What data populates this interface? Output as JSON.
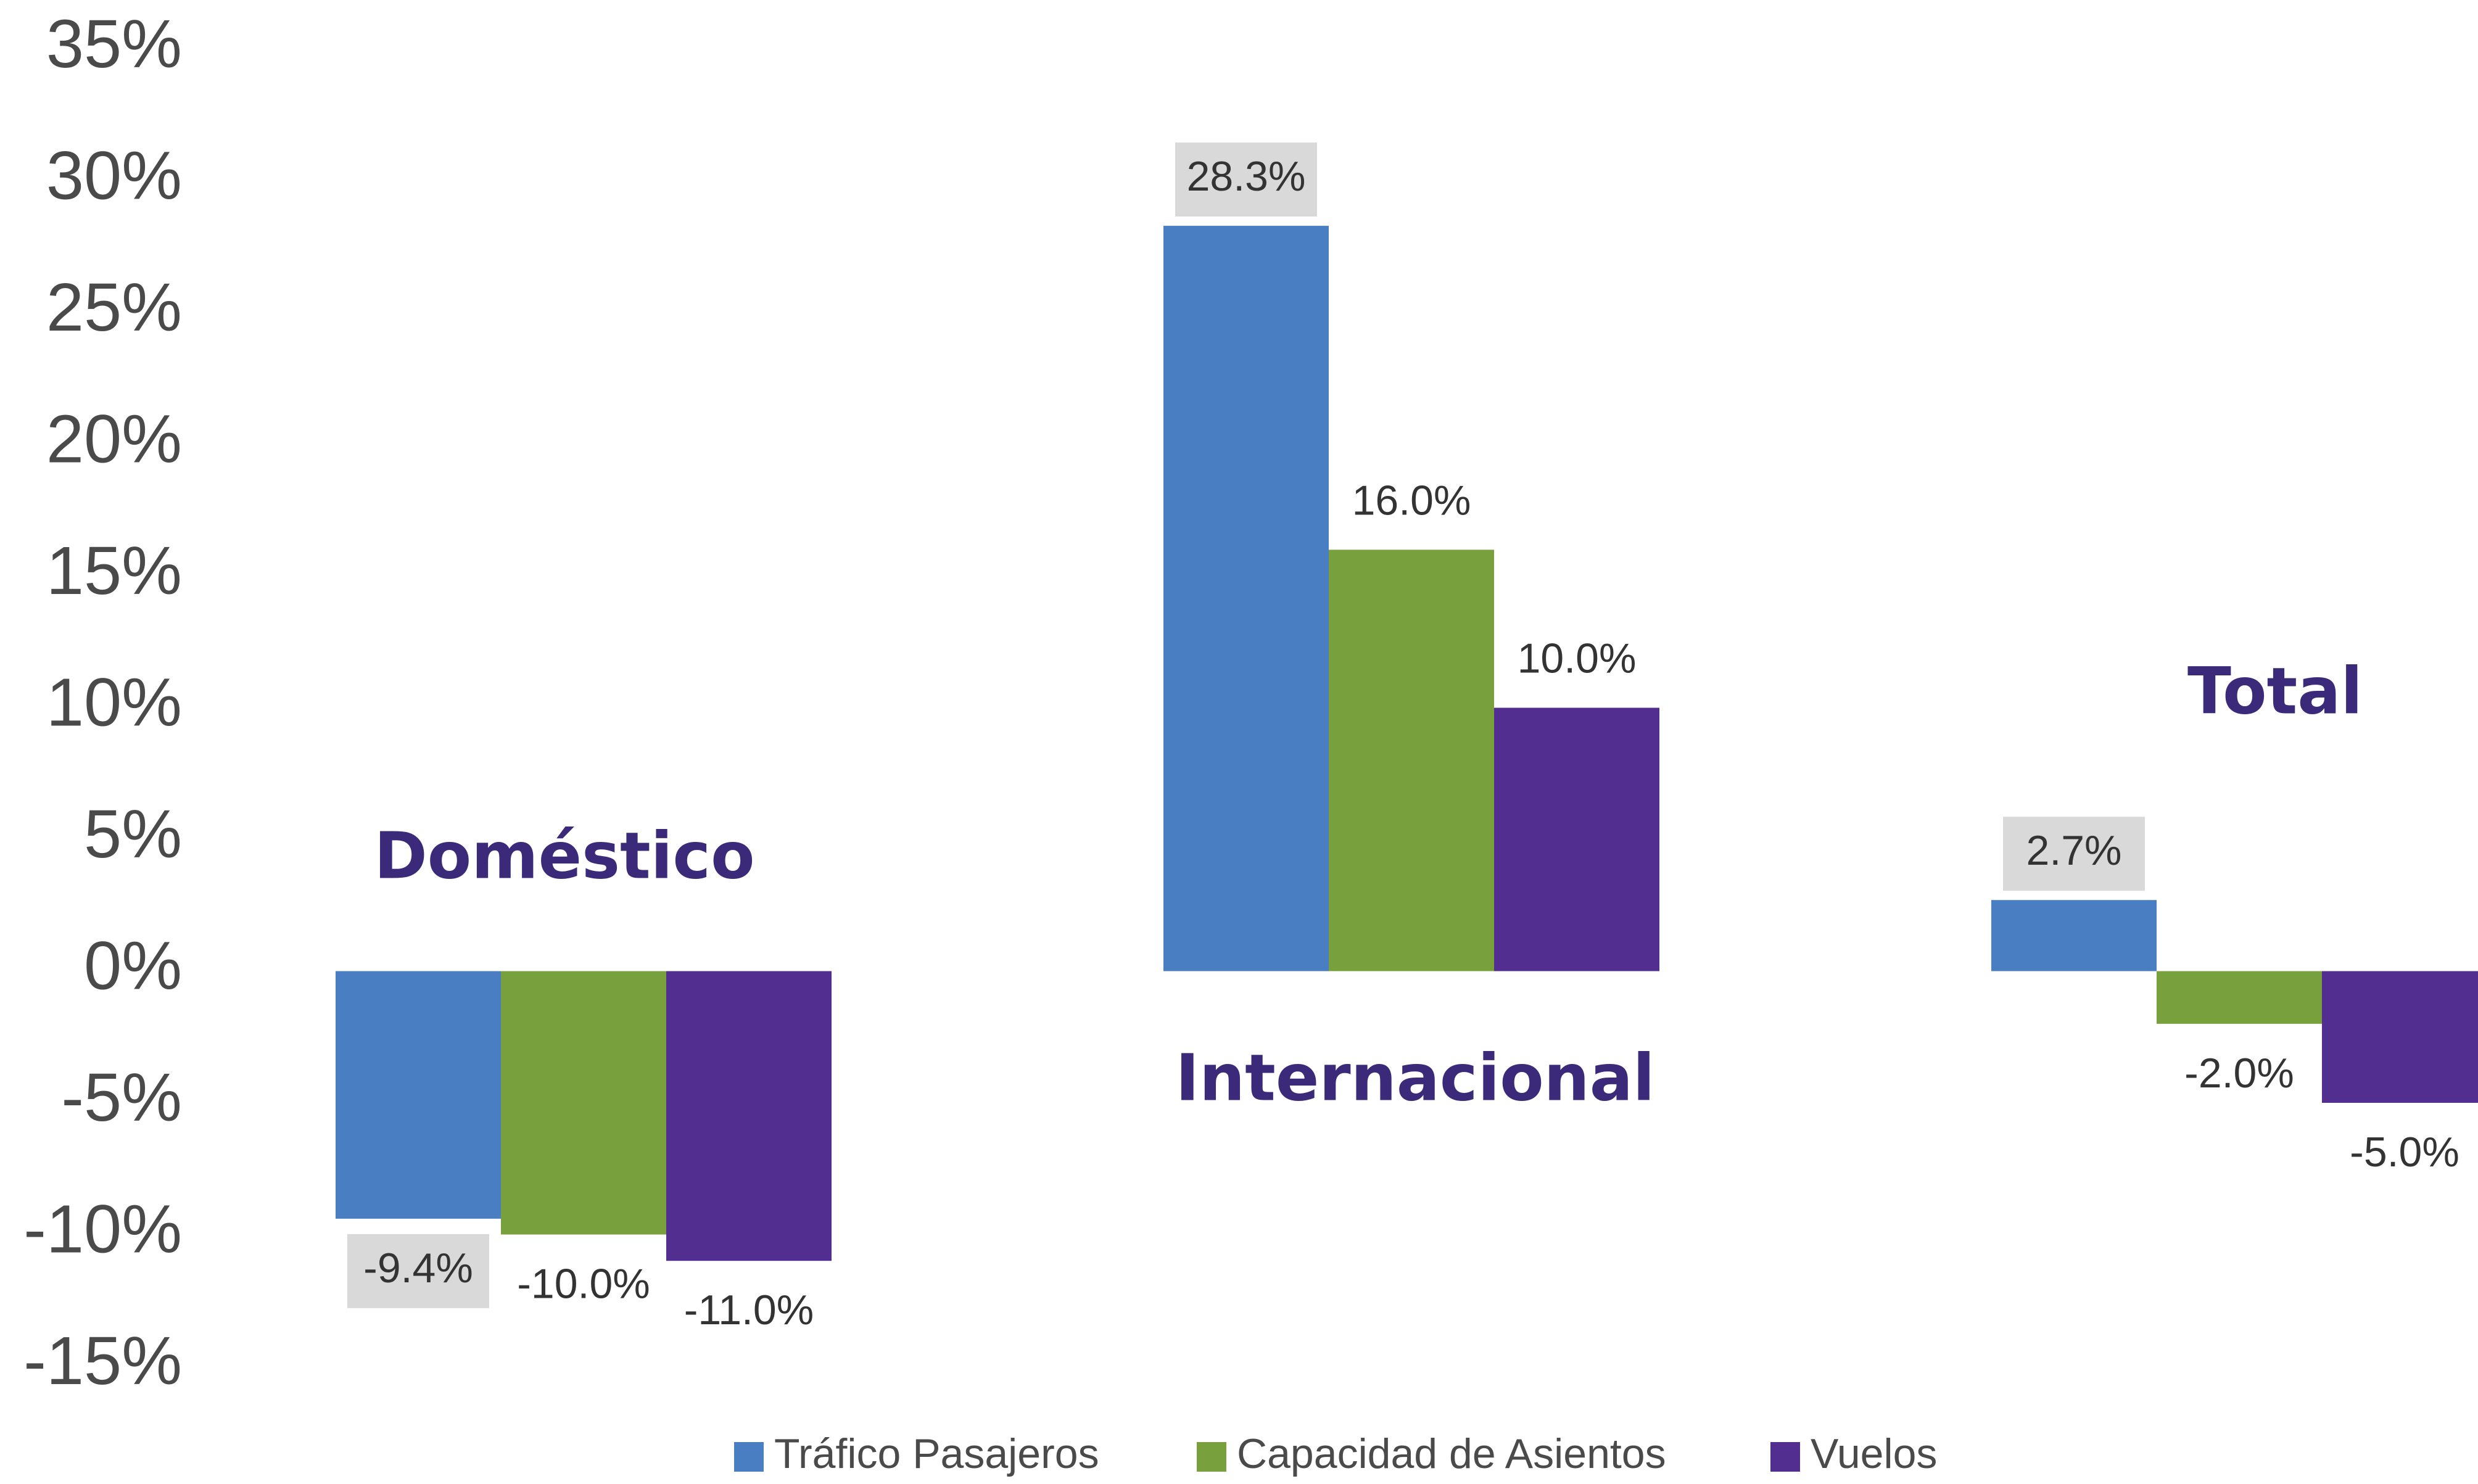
{
  "chart_data": {
    "type": "bar",
    "categories": [
      "Doméstico",
      "Internacional",
      "Total"
    ],
    "series": [
      {
        "name": "Tráfico Pasajeros",
        "values": [
          -9.4,
          28.3,
          2.7
        ],
        "labels": [
          "-9.4%",
          "28.3%",
          "2.7%"
        ]
      },
      {
        "name": "Capacidad de Asientos",
        "values": [
          -10.0,
          16.0,
          -2.0
        ],
        "labels": [
          "-10.0%",
          "16.0%",
          "-2.0%"
        ]
      },
      {
        "name": "Vuelos",
        "values": [
          -11.0,
          10.0,
          -5.0
        ],
        "labels": [
          "-11.0%",
          "10.0%",
          "-5.0%"
        ]
      }
    ],
    "colors": [
      "#4a7ec2",
      "#78a13e",
      "#522e91"
    ],
    "label_box_color": "#d9d9d9",
    "category_label_color": "#3b2a7a",
    "y_ticks": [
      "35%",
      "30%",
      "25%",
      "20%",
      "15%",
      "10%",
      "5%",
      "0%",
      "-5%",
      "-10%",
      "-15%"
    ],
    "y_tick_values": [
      35,
      30,
      25,
      20,
      15,
      10,
      5,
      0,
      -5,
      -10,
      -15
    ],
    "ylim": [
      -15,
      35
    ],
    "grid": false,
    "legend_position": "bottom"
  }
}
